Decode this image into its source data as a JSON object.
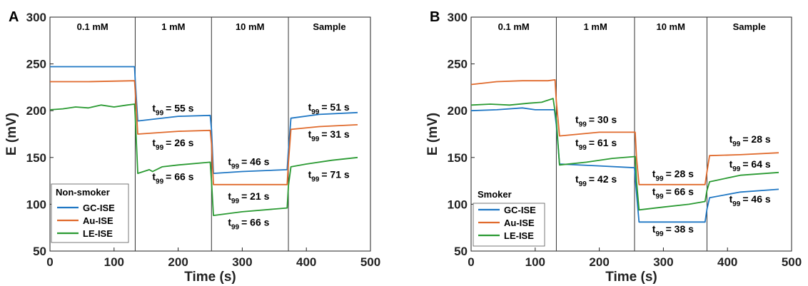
{
  "chart_data": [
    {
      "type": "line",
      "panel_label": "A",
      "xlabel": "Time (s)",
      "ylabel": "E (mV)",
      "xlim": [
        0,
        500
      ],
      "ylim": [
        50,
        300
      ],
      "xticks": [
        0,
        100,
        200,
        300,
        400,
        500
      ],
      "yticks": [
        50,
        100,
        150,
        200,
        250,
        300
      ],
      "phases": [
        {
          "label": "0.1 mM",
          "start": 0,
          "end": 133
        },
        {
          "label": "1 mM",
          "start": 133,
          "end": 252
        },
        {
          "label": "10 mM",
          "start": 252,
          "end": 372
        },
        {
          "label": "Sample",
          "start": 372,
          "end": 500
        }
      ],
      "legend_title": "Non-smoker",
      "legend_position": "bottom-left",
      "series": [
        {
          "name": "GC-ISE",
          "color": "#1f77c4",
          "x": [
            0,
            60,
            132,
            133,
            137,
            200,
            250,
            252,
            255,
            300,
            370,
            372,
            376,
            420,
            480
          ],
          "y": [
            247,
            247,
            247,
            233,
            189,
            194,
            195,
            180,
            133,
            135,
            137,
            158,
            192,
            196,
            198
          ]
        },
        {
          "name": "Au-ISE",
          "color": "#e06a2c",
          "x": [
            0,
            60,
            132,
            133,
            137,
            200,
            250,
            252,
            255,
            300,
            370,
            372,
            376,
            420,
            480
          ],
          "y": [
            231,
            231,
            232,
            222,
            175,
            178,
            179,
            165,
            121,
            121,
            121,
            145,
            180,
            183,
            185
          ]
        },
        {
          "name": "LE-ISE",
          "color": "#2a9a32",
          "x": [
            0,
            20,
            40,
            60,
            80,
            100,
            120,
            132,
            133,
            137,
            155,
            160,
            175,
            200,
            250,
            252,
            255,
            300,
            370,
            372,
            376,
            400,
            440,
            480
          ],
          "y": [
            201,
            202,
            204,
            203,
            206,
            204,
            206,
            207,
            195,
            133,
            137,
            135,
            140,
            142,
            145,
            125,
            88,
            92,
            96,
            120,
            140,
            143,
            147,
            150
          ]
        }
      ],
      "annotations": [
        {
          "text": "t",
          "sub": "99",
          "value": "= 55 s",
          "x": 192,
          "y": 199
        },
        {
          "text": "t",
          "sub": "99",
          "value": "= 26 s",
          "x": 192,
          "y": 162
        },
        {
          "text": "t",
          "sub": "99",
          "value": "= 66 s",
          "x": 192,
          "y": 126
        },
        {
          "text": "t",
          "sub": "99",
          "value": "= 46 s",
          "x": 310,
          "y": 142
        },
        {
          "text": "t",
          "sub": "99",
          "value": "= 21 s",
          "x": 310,
          "y": 105
        },
        {
          "text": "t",
          "sub": "99",
          "value": "= 66 s",
          "x": 310,
          "y": 77
        },
        {
          "text": "t",
          "sub": "99",
          "value": "= 51 s",
          "x": 435,
          "y": 200
        },
        {
          "text": "t",
          "sub": "99",
          "value": "= 31 s",
          "x": 435,
          "y": 171
        },
        {
          "text": "t",
          "sub": "99",
          "value": "= 71 s",
          "x": 435,
          "y": 128
        }
      ]
    },
    {
      "type": "line",
      "panel_label": "B",
      "xlabel": "Time (s)",
      "ylabel": "E (mV)",
      "xlim": [
        0,
        500
      ],
      "ylim": [
        50,
        300
      ],
      "xticks": [
        0,
        100,
        200,
        300,
        400,
        500
      ],
      "yticks": [
        50,
        100,
        150,
        200,
        250,
        300
      ],
      "phases": [
        {
          "label": "0.1 mM",
          "start": 0,
          "end": 133
        },
        {
          "label": "1 mM",
          "start": 133,
          "end": 255
        },
        {
          "label": "10 mM",
          "start": 255,
          "end": 368
        },
        {
          "label": "Sample",
          "start": 368,
          "end": 500
        }
      ],
      "legend_title": "Smoker",
      "legend_position": "bottom-left",
      "series": [
        {
          "name": "GC-ISE",
          "color": "#1f77c4",
          "x": [
            0,
            40,
            80,
            100,
            130,
            133,
            138,
            200,
            255,
            257,
            262,
            300,
            365,
            368,
            372,
            420,
            480
          ],
          "y": [
            200,
            201,
            203,
            201,
            201,
            185,
            143,
            141,
            139,
            120,
            81,
            81,
            81,
            95,
            107,
            113,
            116
          ]
        },
        {
          "name": "Au-ISE",
          "color": "#e06a2c",
          "x": [
            0,
            40,
            80,
            120,
            131,
            133,
            138,
            200,
            256,
            258,
            262,
            300,
            365,
            368,
            372,
            420,
            480
          ],
          "y": [
            228,
            231,
            232,
            232,
            233,
            210,
            173,
            177,
            177,
            150,
            121,
            121,
            121,
            135,
            152,
            153,
            155
          ]
        },
        {
          "name": "LE-ISE",
          "color": "#2a9a32",
          "x": [
            0,
            30,
            60,
            90,
            110,
            128,
            133,
            138,
            180,
            220,
            256,
            258,
            262,
            300,
            340,
            365,
            368,
            372,
            420,
            480
          ],
          "y": [
            206,
            207,
            206,
            208,
            209,
            213,
            190,
            142,
            145,
            149,
            151,
            125,
            94,
            97,
            100,
            103,
            115,
            124,
            131,
            134
          ]
        }
      ],
      "annotations": [
        {
          "text": "t",
          "sub": "99",
          "value": "= 30 s",
          "x": 195,
          "y": 187
        },
        {
          "text": "t",
          "sub": "99",
          "value": "= 61 s",
          "x": 195,
          "y": 162
        },
        {
          "text": "t",
          "sub": "99",
          "value": "= 42 s",
          "x": 195,
          "y": 123
        },
        {
          "text": "t",
          "sub": "99",
          "value": "= 28 s",
          "x": 315,
          "y": 129
        },
        {
          "text": "t",
          "sub": "99",
          "value": "= 66 s",
          "x": 315,
          "y": 110
        },
        {
          "text": "t",
          "sub": "99",
          "value": "= 38 s",
          "x": 315,
          "y": 70
        },
        {
          "text": "t",
          "sub": "99",
          "value": "= 28 s",
          "x": 435,
          "y": 166
        },
        {
          "text": "t",
          "sub": "99",
          "value": "= 64 s",
          "x": 435,
          "y": 139
        },
        {
          "text": "t",
          "sub": "99",
          "value": "= 46 s",
          "x": 435,
          "y": 102
        }
      ]
    }
  ]
}
